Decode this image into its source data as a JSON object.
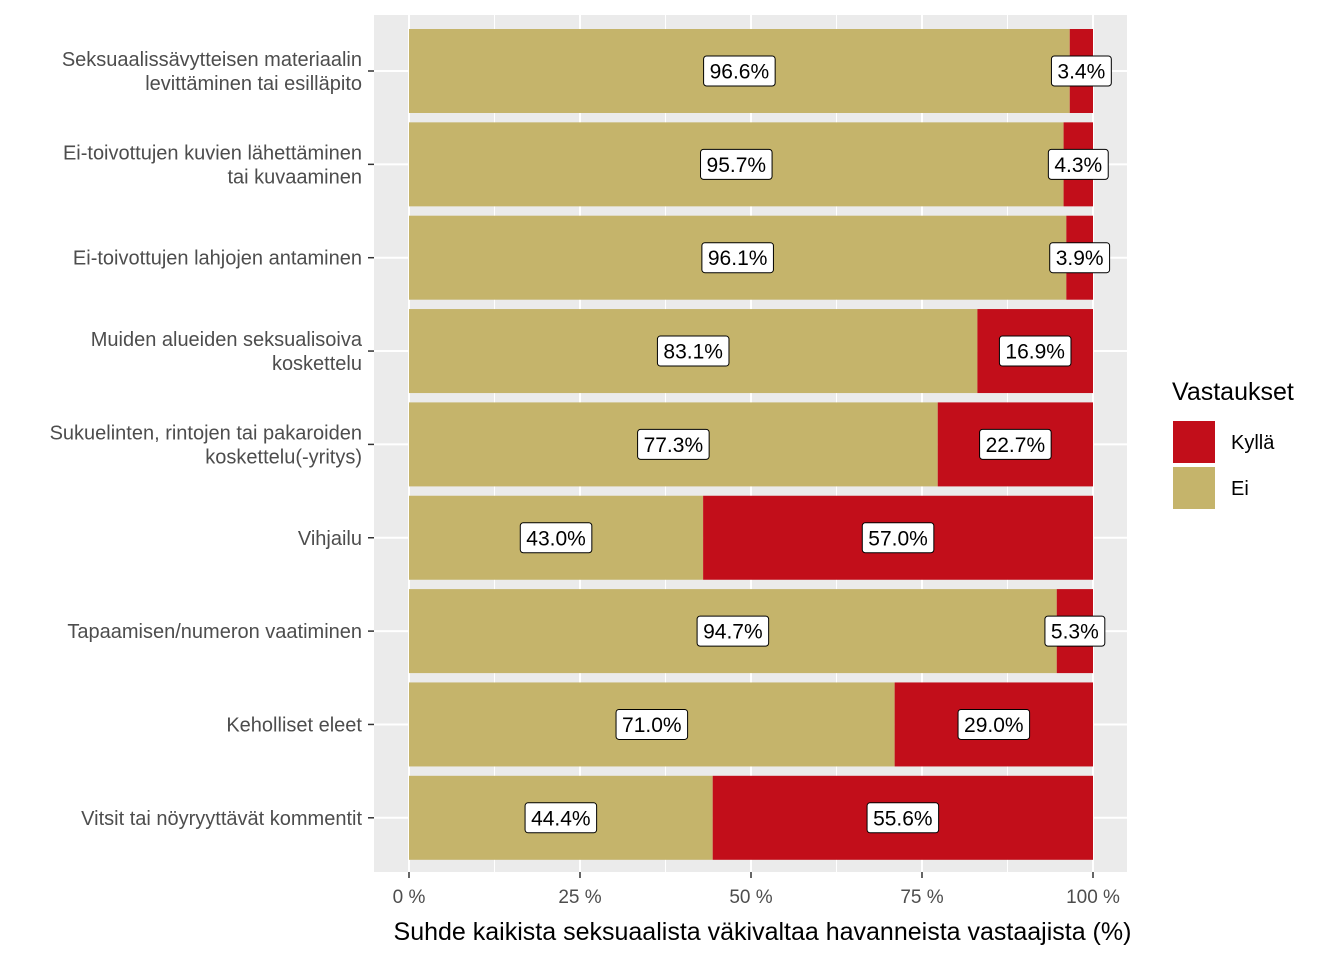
{
  "chart_data": {
    "type": "bar",
    "orientation": "horizontal",
    "stacked": "percent",
    "categories": [
      "Seksuaalissävytteisen materiaalin\nlevittäminen tai esilläpito",
      "Ei-toivottujen kuvien lähettäminen\ntai kuvaaminen",
      "Ei-toivottujen lahjojen antaminen",
      "Muiden alueiden seksualisoiva\nkoskettelu",
      "Sukuelinten, rintojen tai pakaroiden\nkoskettelu(-yritys)",
      "Vihjailu",
      "Tapaamisen/numeron vaatiminen",
      "Keholliset eleet",
      "Vitsit tai nöyryyttävät kommentit"
    ],
    "series": [
      {
        "name": "Ei",
        "color": "#C5B46B",
        "values": [
          96.6,
          95.7,
          96.1,
          83.1,
          77.3,
          43.0,
          94.7,
          71.0,
          44.4
        ],
        "labels": [
          "96.6%",
          "95.7%",
          "96.1%",
          "83.1%",
          "77.3%",
          "43.0%",
          "94.7%",
          "71.0%",
          "44.4%"
        ]
      },
      {
        "name": "Kyllä",
        "color": "#C20E1A",
        "values": [
          3.4,
          4.3,
          3.9,
          16.9,
          22.7,
          57.0,
          5.3,
          29.0,
          55.6
        ],
        "labels": [
          "3.4%",
          "4.3%",
          "3.9%",
          "16.9%",
          "22.7%",
          "57.0%",
          "5.3%",
          "29.0%",
          "55.6%"
        ]
      }
    ],
    "xlim": [
      0,
      100
    ],
    "x_ticks": [
      0,
      25,
      50,
      75,
      100
    ],
    "x_tick_labels": [
      "0 %",
      "25 %",
      "50 %",
      "75 %",
      "100 %"
    ],
    "xlabel": "Suhde kaikista seksuaalista väkivaltaa havanneista vastaajista (%)",
    "ylabel": "",
    "legend": {
      "title": "Vastaukset",
      "position": "right",
      "items": [
        {
          "label": "Kyllä",
          "color": "#C20E1A"
        },
        {
          "label": "Ei",
          "color": "#C5B46B"
        }
      ]
    },
    "grid": true,
    "panel_background": "#EBEBEB"
  }
}
